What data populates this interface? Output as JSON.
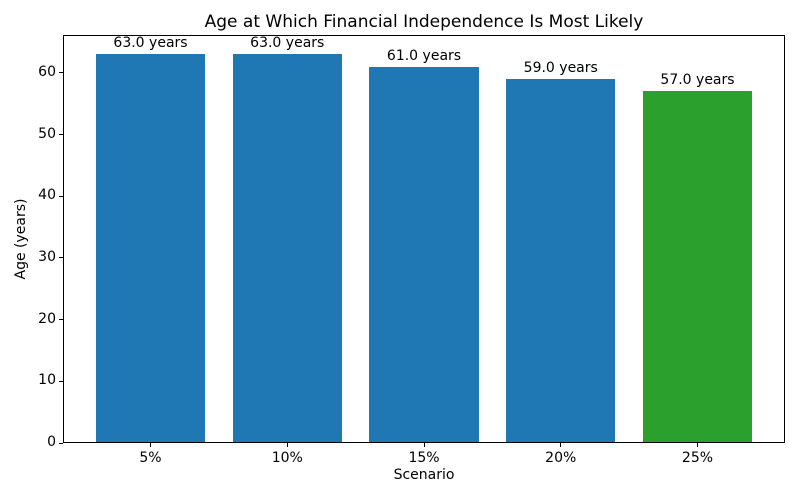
{
  "chart_data": {
    "type": "bar",
    "title": "Age at Which Financial Independence Is Most Likely",
    "xlabel": "Scenario",
    "ylabel": "Age (years)",
    "categories": [
      "5%",
      "10%",
      "15%",
      "20%",
      "25%"
    ],
    "values": [
      63.0,
      63.0,
      61.0,
      59.0,
      57.0
    ],
    "bar_labels": [
      "63.0 years",
      "63.0 years",
      "61.0 years",
      "59.0 years",
      "57.0 years"
    ],
    "bar_colors": [
      "#1f77b4",
      "#1f77b4",
      "#1f77b4",
      "#1f77b4",
      "#2ca02c"
    ],
    "ylim": [
      0,
      66.15
    ],
    "yticks": [
      0,
      10,
      20,
      30,
      40,
      50,
      60
    ],
    "grid": false,
    "legend": "none"
  }
}
